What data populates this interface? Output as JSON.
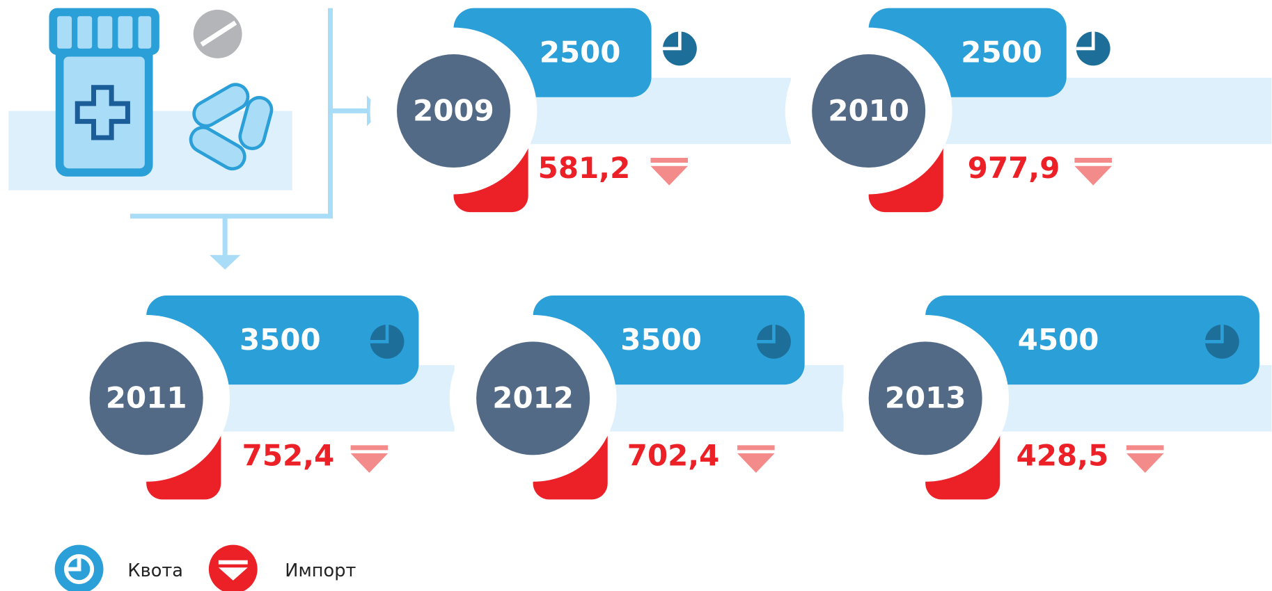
{
  "items": [
    {
      "year": "2009",
      "quota": "2500",
      "import": "581,2"
    },
    {
      "year": "2010",
      "quota": "2500",
      "import": "977,9"
    },
    {
      "year": "2011",
      "quota": "3500",
      "import": "752,4"
    },
    {
      "year": "2012",
      "quota": "3500",
      "import": "702,4"
    },
    {
      "year": "2013",
      "quota": "4500",
      "import": "428,5"
    }
  ],
  "legend": {
    "quota": "Квота",
    "import": "Импорт"
  }
}
